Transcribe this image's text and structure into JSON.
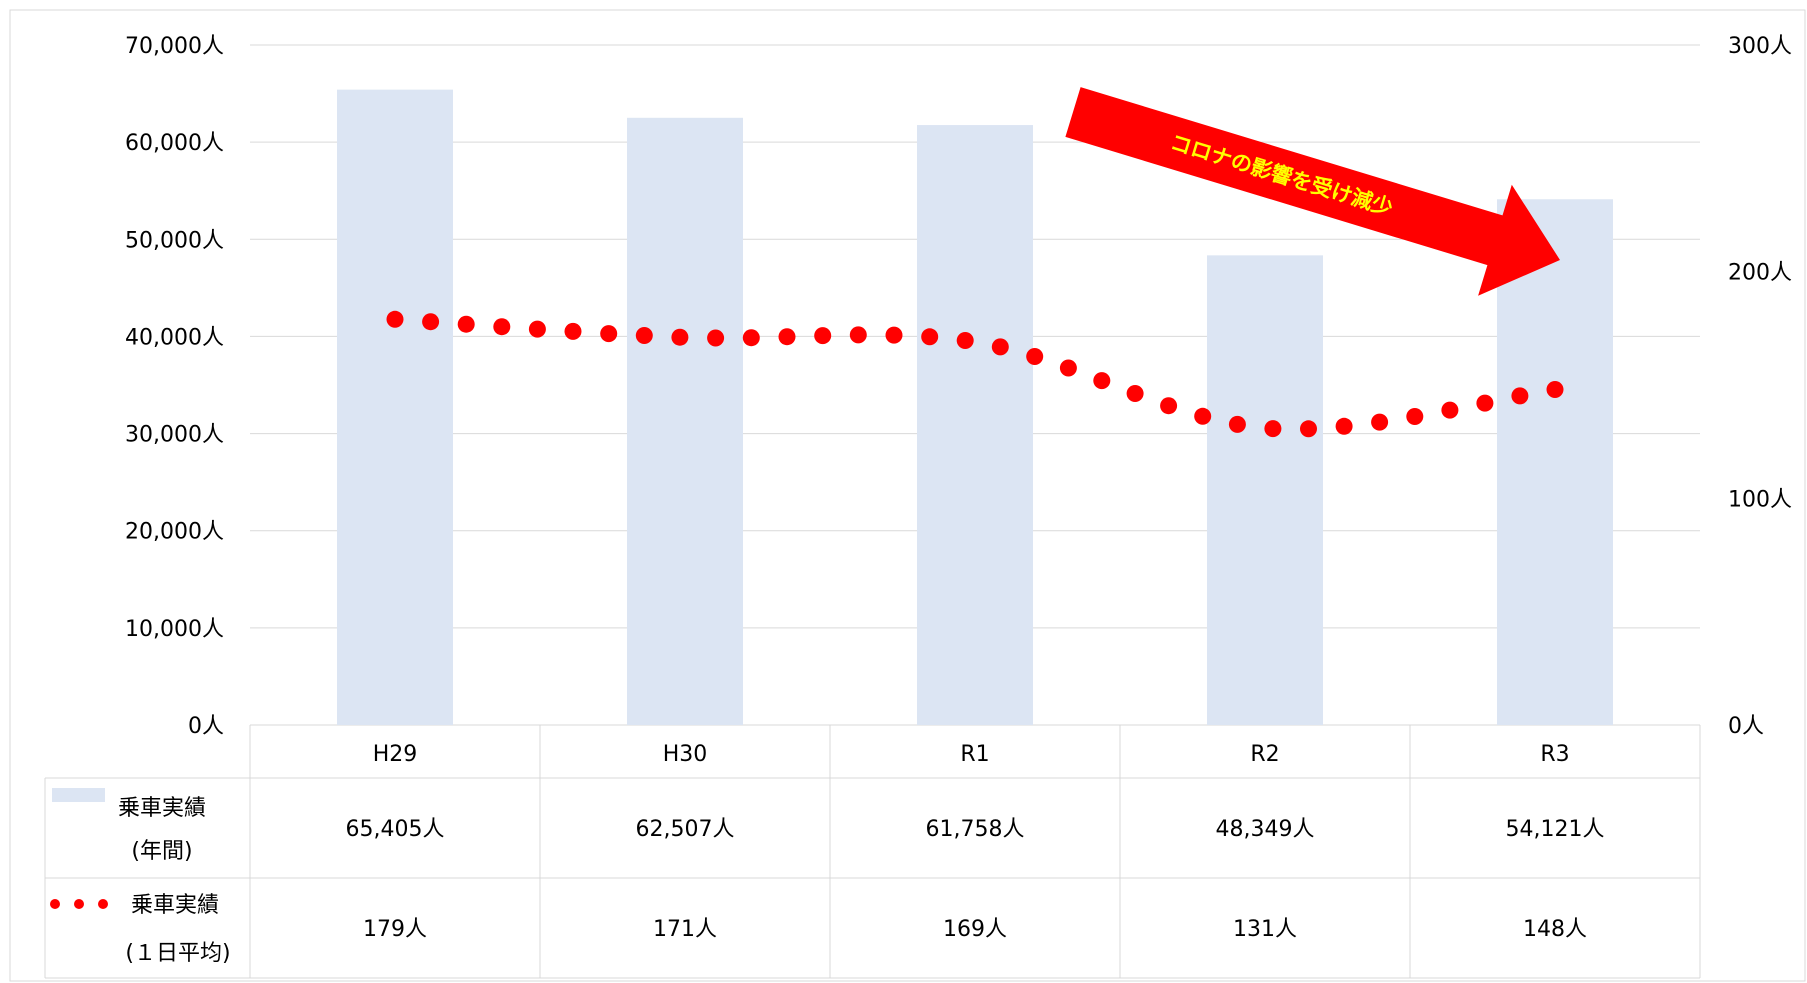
{
  "chart_data": {
    "type": "bar",
    "categories": [
      "H29",
      "H30",
      "R1",
      "R2",
      "R3"
    ],
    "series": [
      {
        "name": "乗車実績(年間)",
        "type": "bar",
        "axis": "left",
        "values": [
          65405,
          62507,
          61758,
          48349,
          54121
        ],
        "table_values": [
          "65,405人",
          "62,507人",
          "61,758人",
          "48,349人",
          "54,121人"
        ],
        "color": "#dce5f3"
      },
      {
        "name": "乗車実績(1日平均)",
        "type": "line",
        "axis": "right",
        "style": "round-dot",
        "values": [
          179,
          171,
          169,
          131,
          148
        ],
        "table_values": [
          "179人",
          "171人",
          "169人",
          "131人",
          "148人"
        ],
        "color": "#ff0000"
      }
    ],
    "y_left": {
      "ylim": [
        0,
        70000
      ],
      "ticks": [
        "0人",
        "10,000人",
        "20,000人",
        "30,000人",
        "40,000人",
        "50,000人",
        "60,000人",
        "70,000人"
      ]
    },
    "y_right": {
      "ylim": [
        0,
        300
      ],
      "ticks": [
        "0人",
        "100人",
        "200人",
        "300人"
      ]
    },
    "grid": true,
    "legend": "data-table",
    "annotation": {
      "text": "コロナの影響を受け減少",
      "color": "#ff0000",
      "text_color": "#ffff00"
    },
    "table_labels": {
      "bar": [
        "乗車実績",
        "(年間)"
      ],
      "line": [
        "乗車実績",
        "(１日平均)"
      ]
    }
  }
}
